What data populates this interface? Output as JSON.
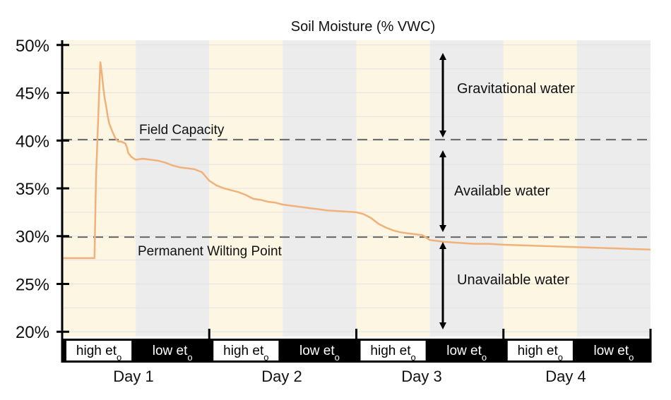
{
  "chart_data": {
    "type": "line",
    "title": "Soil Moisture (% VWC)",
    "xlabel": "",
    "ylabel": "",
    "ylim": [
      19.5,
      50.5
    ],
    "xlim": [
      0,
      4
    ],
    "y_ticks": [
      20,
      25,
      30,
      35,
      40,
      45,
      50
    ],
    "y_tick_labels": [
      "20%",
      "25%",
      "30%",
      "35%",
      "40%",
      "45%",
      "50%"
    ],
    "grid": true,
    "days": [
      "Day 1",
      "Day 2",
      "Day 3",
      "Day 4"
    ],
    "periods": [
      {
        "label": "high et",
        "sub": "o",
        "start": 0.0,
        "end": 0.5,
        "kind": "high"
      },
      {
        "label": "low et",
        "sub": "o",
        "start": 0.5,
        "end": 1.0,
        "kind": "low"
      },
      {
        "label": "high et",
        "sub": "o",
        "start": 1.0,
        "end": 1.5,
        "kind": "high"
      },
      {
        "label": "low et",
        "sub": "o",
        "start": 1.5,
        "end": 2.0,
        "kind": "low"
      },
      {
        "label": "high et",
        "sub": "o",
        "start": 2.0,
        "end": 2.5,
        "kind": "high"
      },
      {
        "label": "low et",
        "sub": "o",
        "start": 2.5,
        "end": 3.0,
        "kind": "low"
      },
      {
        "label": "high et",
        "sub": "o",
        "start": 3.0,
        "end": 3.5,
        "kind": "high"
      },
      {
        "label": "low et",
        "sub": "o",
        "start": 3.5,
        "end": 4.0,
        "kind": "low"
      }
    ],
    "reference_lines": [
      {
        "name": "Field Capacity",
        "y": 40.1
      },
      {
        "name": "Permanent Wilting Point",
        "y": 29.9
      }
    ],
    "zones": [
      {
        "label": "Gravitational water",
        "y_from": 40.1,
        "y_to": 50.5
      },
      {
        "label": "Available water",
        "y_from": 29.9,
        "y_to": 40.1
      },
      {
        "label": "Unavailable water",
        "y_from": 19.5,
        "y_to": 29.9
      }
    ],
    "series": [
      {
        "x": [
          0.0,
          0.22,
          0.23,
          0.25,
          0.26,
          0.27,
          0.28,
          0.29,
          0.3,
          0.31,
          0.32,
          0.34,
          0.36,
          0.38,
          0.4,
          0.43,
          0.44,
          0.45,
          0.47,
          0.5,
          0.55,
          0.6,
          0.65,
          0.7,
          0.75,
          0.8,
          0.85,
          0.9,
          0.95,
          1.0,
          1.05,
          1.1,
          1.15,
          1.2,
          1.25,
          1.3,
          1.35,
          1.4,
          1.45,
          1.5,
          1.55,
          1.6,
          1.65,
          1.7,
          1.75,
          1.8,
          1.9,
          2.0,
          2.05,
          2.1,
          2.15,
          2.2,
          2.25,
          2.3,
          2.35,
          2.4,
          2.45,
          2.5,
          2.6,
          2.7,
          2.8,
          2.9,
          3.0,
          3.2,
          3.4,
          3.6,
          3.8,
          4.0
        ],
        "values": [
          27.7,
          27.7,
          36.0,
          44.5,
          48.2,
          47.0,
          45.5,
          44.3,
          43.5,
          42.5,
          41.8,
          41.0,
          40.3,
          39.9,
          39.9,
          39.7,
          39.3,
          38.7,
          38.3,
          38.0,
          38.1,
          38.0,
          37.9,
          37.7,
          37.4,
          37.2,
          37.1,
          37.0,
          36.7,
          35.8,
          35.3,
          35.0,
          34.8,
          34.6,
          34.3,
          33.9,
          33.8,
          33.6,
          33.5,
          33.3,
          33.2,
          33.1,
          33.0,
          32.9,
          32.8,
          32.7,
          32.6,
          32.5,
          32.3,
          31.9,
          31.3,
          30.9,
          30.6,
          30.4,
          30.3,
          30.2,
          30.1,
          29.6,
          29.4,
          29.3,
          29.2,
          29.2,
          29.1,
          29.0,
          28.9,
          28.8,
          28.7,
          28.6
        ]
      }
    ],
    "colors": {
      "high_band": "#fdf6e3",
      "low_band": "#ececec",
      "line": "#f0b27a",
      "reference": "#666666",
      "axis": "#000000"
    }
  }
}
